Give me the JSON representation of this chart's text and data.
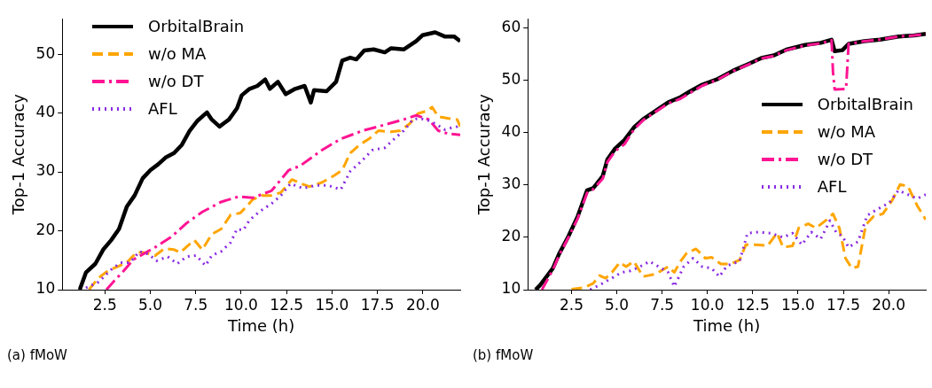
{
  "chart_data": [
    {
      "type": "line",
      "xlabel": "Time (h)",
      "ylabel": "Top-1 Accuracy",
      "xlim": [
        0.16,
        22.05
      ],
      "ylim": [
        10,
        56
      ],
      "xticks": [
        {
          "value": 2.5,
          "label": "2.5"
        },
        {
          "value": 5,
          "label": "5.0"
        },
        {
          "value": 7.5,
          "label": "7.5"
        },
        {
          "value": 10,
          "label": "10.0"
        },
        {
          "value": 12.5,
          "label": "12.5"
        },
        {
          "value": 15,
          "label": "15.0"
        },
        {
          "value": 17.5,
          "label": "17.5"
        },
        {
          "value": 20,
          "label": "20.0"
        }
      ],
      "yticks": [
        10,
        20,
        30,
        40,
        50
      ],
      "grid": false,
      "legend": "top left",
      "marker": "none",
      "annotations": [
        "(a) fMoW"
      ],
      "series": [
        {
          "name": "OrbitalBrain",
          "color": "#000000",
          "line_style": "solid",
          "x": [
            1.12,
            1.46,
            1.98,
            2.41,
            2.85,
            3.28,
            3.71,
            4.14,
            4.58,
            5.01,
            5.44,
            5.87,
            6.31,
            6.74,
            7.17,
            7.6,
            8.12,
            8.38,
            8.81,
            9.33,
            9.77,
            10.03,
            10.46,
            10.89,
            11.32,
            11.58,
            12.02,
            12.45,
            12.97,
            13.49,
            13.83,
            14.01,
            14.7,
            15.22,
            15.56,
            16.0,
            16.34,
            16.77,
            17.29,
            17.9,
            18.25,
            18.94,
            19.63,
            19.97,
            20.67,
            21.19,
            21.71,
            22.05
          ],
          "values": [
            10,
            12.9,
            14.4,
            16.8,
            18.4,
            20.3,
            24.1,
            26,
            28.9,
            30.3,
            31.3,
            32.5,
            33.2,
            34.6,
            37,
            38.7,
            40.1,
            38.9,
            37.7,
            38.9,
            40.8,
            43,
            44.1,
            44.6,
            45.7,
            44.1,
            45.3,
            43.2,
            44.1,
            44.6,
            41.8,
            43.9,
            43.7,
            45.3,
            48.9,
            49.4,
            49.1,
            50.6,
            50.8,
            50.3,
            51,
            50.8,
            52.2,
            53.2,
            53.7,
            53,
            53,
            52.2
          ]
        },
        {
          "name": "w/o MA",
          "color": "#ffa500",
          "line_style": "dashed",
          "x": [
            1.63,
            2.15,
            2.67,
            3.19,
            3.71,
            4.23,
            4.66,
            5.27,
            5.79,
            6.31,
            6.65,
            7.08,
            7.43,
            7.86,
            8.38,
            8.9,
            9.42,
            9.94,
            10.29,
            10.63,
            11.15,
            11.67,
            12.19,
            12.79,
            13.31,
            13.75,
            14.44,
            15.13,
            15.56,
            16.0,
            16.51,
            17.03,
            17.55,
            18.25,
            18.76,
            19.28,
            19.72,
            20.15,
            20.5,
            20.84,
            21.36,
            21.88,
            22.05
          ],
          "values": [
            10,
            12,
            13.2,
            13.9,
            14.6,
            16.3,
            16.3,
            15.8,
            17,
            16.8,
            16.3,
            17.5,
            18.4,
            16.8,
            19.4,
            20.3,
            22.7,
            23,
            24.1,
            25.3,
            26,
            26,
            26.5,
            28.7,
            28,
            27.5,
            28.2,
            29.4,
            30.3,
            33.2,
            34.6,
            35.6,
            37,
            36.8,
            37,
            38.2,
            39.9,
            40.3,
            41,
            39.4,
            39.1,
            38.9,
            37.7
          ]
        },
        {
          "name": "w/o DT",
          "color": "#ff1493",
          "line_style": "dashdot",
          "x": [
            2.59,
            3.02,
            3.54,
            4.06,
            4.58,
            5.27,
            6.13,
            7.0,
            7.86,
            8.9,
            9.85,
            10.63,
            11.67,
            12.19,
            12.62,
            13.23,
            14.44,
            15.48,
            16.69,
            17.9,
            18.94,
            19.63,
            20.32,
            20.84,
            21.36,
            22.05
          ],
          "values": [
            10,
            11.5,
            13.2,
            15.1,
            16,
            17.2,
            18.9,
            21.3,
            23.2,
            24.9,
            25.8,
            25.6,
            26.8,
            28.7,
            30.3,
            31,
            33.7,
            35.6,
            37,
            38,
            38.9,
            39.6,
            38.9,
            37,
            36.5,
            36.3
          ]
        },
        {
          "name": "AFL",
          "color": "#8a2be2",
          "line_style": "dotted",
          "x": [
            1.46,
            2.15,
            2.85,
            3.37,
            3.89,
            4.4,
            4.92,
            5.35,
            5.96,
            6.48,
            7.0,
            7.52,
            8.04,
            8.38,
            8.9,
            9.42,
            9.77,
            10.11,
            10.46,
            10.98,
            11.67,
            12.19,
            12.71,
            13.4,
            14.09,
            14.79,
            15.48,
            16.0,
            16.61,
            17.21,
            17.9,
            18.42,
            18.94,
            19.45,
            19.8,
            20.32,
            20.67,
            21.19,
            21.88,
            22.05
          ],
          "values": [
            10.3,
            11.3,
            13.4,
            14.6,
            14.6,
            16.5,
            16,
            14.9,
            15.6,
            14.4,
            15.6,
            15.8,
            14.1,
            15.8,
            16.5,
            18,
            20.3,
            20.1,
            21.8,
            23.2,
            24.6,
            26,
            28,
            27.2,
            27.7,
            27.7,
            27,
            30.1,
            31.8,
            33.7,
            34.1,
            35.6,
            37,
            38.9,
            39.1,
            38.7,
            38.2,
            37.2,
            37.7,
            38
          ]
        }
      ]
    },
    {
      "type": "line",
      "xlabel": "Time (h)",
      "ylabel": "Top-1 Accuracy",
      "xlim": [
        0.09,
        22.05
      ],
      "ylim": [
        10,
        61.8
      ],
      "xticks": [
        {
          "value": 2.5,
          "label": "2.5"
        },
        {
          "value": 5,
          "label": "5.0"
        },
        {
          "value": 7.5,
          "label": "7.5"
        },
        {
          "value": 10,
          "label": "10.0"
        },
        {
          "value": 12.5,
          "label": "12.5"
        },
        {
          "value": 15,
          "label": "15.0"
        },
        {
          "value": 17.5,
          "label": "17.5"
        },
        {
          "value": 20,
          "label": "20.0"
        }
      ],
      "yticks": [
        10,
        20,
        30,
        40,
        50,
        60
      ],
      "grid": false,
      "legend": "center right",
      "marker": "none",
      "annotations": [
        "(b) fMoW"
      ],
      "series": [
        {
          "name": "OrbitalBrain",
          "color": "#000000",
          "line_style": "solid",
          "x": [
            0.52,
            0.78,
            1.47,
            1.81,
            2.33,
            2.84,
            3.36,
            3.7,
            4.22,
            4.48,
            4.91,
            5.42,
            5.94,
            6.45,
            7.14,
            7.83,
            8.51,
            9.03,
            9.72,
            10.58,
            11.43,
            12.29,
            12.98,
            13.67,
            14.36,
            15.39,
            16.25,
            16.85,
            17.02,
            17.45,
            17.79,
            18.65,
            19.51,
            20.54,
            21.4,
            22.05
          ],
          "values": [
            10,
            10.9,
            14.1,
            16.8,
            20.2,
            24,
            29,
            29.4,
            31.7,
            34.9,
            37,
            38.6,
            41,
            42.6,
            44.2,
            45.8,
            46.8,
            47.9,
            49.2,
            50.3,
            51.9,
            53.2,
            54.3,
            54.8,
            55.9,
            56.8,
            57.2,
            57.8,
            55.6,
            55.8,
            57,
            57.5,
            57.8,
            58.4,
            58.6,
            58.9
          ]
        },
        {
          "name": "w/o MA",
          "color": "#ffa500",
          "line_style": "dashed",
          "x": [
            2.5,
            3.19,
            3.7,
            4.05,
            4.39,
            4.73,
            5.16,
            5.51,
            5.94,
            6.45,
            7.14,
            7.83,
            8.17,
            8.51,
            8.86,
            9.37,
            9.89,
            10.23,
            10.75,
            11.26,
            11.78,
            12.12,
            12.64,
            13.32,
            13.84,
            14.18,
            14.7,
            15.04,
            15.56,
            15.99,
            16.59,
            16.93,
            17.28,
            17.62,
            17.96,
            18.31,
            18.74,
            19.17,
            19.68,
            20.2,
            20.63,
            21.06,
            21.57,
            22.05
          ],
          "values": [
            10.1,
            10.4,
            11.2,
            12.7,
            12.2,
            13.3,
            15.2,
            14.4,
            15.4,
            12.5,
            13,
            14.4,
            13.3,
            15.4,
            17,
            17.8,
            16,
            16.2,
            14.9,
            14.9,
            15.7,
            18.6,
            18.6,
            18.4,
            20.8,
            18.1,
            18.4,
            21.8,
            22.6,
            21.8,
            23.4,
            24.5,
            21.8,
            16,
            14.1,
            14.4,
            22.4,
            24,
            24.5,
            27.1,
            30.1,
            29.8,
            26.1,
            23.4
          ]
        },
        {
          "name": "w/o DT",
          "color": "#ff1493",
          "line_style": "dashdot",
          "x": [
            0.87,
            1.47,
            1.81,
            2.33,
            2.84,
            3.36,
            3.7,
            4.22,
            4.48,
            4.91,
            5.42,
            5.94,
            6.45,
            7.14,
            7.83,
            8.51,
            9.03,
            9.72,
            10.58,
            11.43,
            12.29,
            12.98,
            13.67,
            14.36,
            15.39,
            16.25,
            16.85,
            16.93,
            17.02,
            17.65,
            17.79,
            18.65,
            19.51,
            20.54,
            21.4,
            22.05
          ],
          "values": [
            10,
            13.8,
            16.5,
            20,
            23.6,
            28.5,
            29.2,
            31.2,
            34.4,
            36.5,
            37.8,
            40.6,
            42.4,
            44,
            45.6,
            46.5,
            47.6,
            49,
            50.2,
            51.8,
            53.1,
            54.2,
            54.7,
            55.8,
            56.7,
            57.1,
            57.7,
            51.6,
            48.3,
            48.4,
            57,
            57.5,
            57.8,
            58.4,
            58.6,
            58.9
          ]
        },
        {
          "name": "AFL",
          "color": "#8a2be2",
          "line_style": "dotted",
          "x": [
            3.53,
            4.05,
            4.73,
            5.25,
            5.77,
            6.28,
            6.8,
            7.31,
            7.83,
            8.17,
            8.69,
            9.2,
            9.72,
            10.23,
            10.66,
            11.09,
            11.78,
            12.21,
            12.81,
            13.5,
            14.18,
            14.7,
            15.21,
            15.73,
            16.25,
            16.76,
            17.1,
            17.45,
            17.79,
            18.31,
            18.82,
            19.34,
            20.03,
            20.54,
            21.06,
            21.57,
            22.05
          ],
          "values": [
            10,
            10.9,
            12.2,
            13.3,
            13.6,
            14.4,
            15.4,
            14.4,
            13.3,
            10.6,
            14.4,
            16,
            14.4,
            14.1,
            12.5,
            14.6,
            15.4,
            20.8,
            21,
            20.8,
            20,
            20.8,
            18.6,
            21,
            19.7,
            23.2,
            21,
            20.2,
            18.1,
            19.2,
            24.2,
            25.3,
            26.6,
            29,
            28.2,
            27.4,
            28.2
          ]
        }
      ]
    }
  ]
}
